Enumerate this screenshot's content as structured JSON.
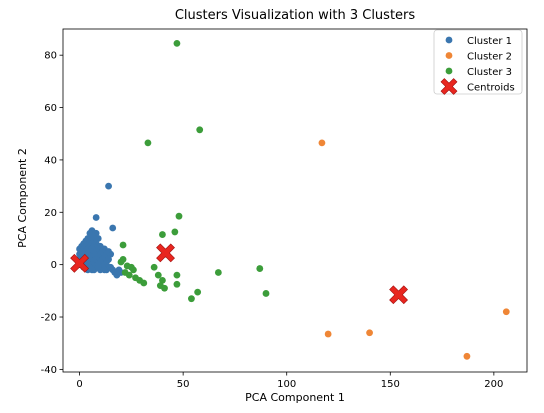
{
  "chart_data": {
    "type": "scatter",
    "title": "Clusters Visualization with 3 Clusters",
    "xlabel": "PCA Component 1",
    "ylabel": "PCA Component 2",
    "xlim": [
      -8,
      216
    ],
    "ylim": [
      -41,
      90
    ],
    "xticks": [
      0,
      50,
      100,
      150,
      200
    ],
    "yticks": [
      -40,
      -20,
      0,
      20,
      40,
      60,
      80
    ],
    "grid": false,
    "legend_position": "top-right",
    "series": [
      {
        "name": "Cluster 1",
        "color": "#3a76af",
        "marker": "circle",
        "points": [
          [
            14,
            30
          ],
          [
            8,
            18
          ],
          [
            16,
            14
          ],
          [
            6,
            13
          ],
          [
            5,
            12
          ],
          [
            8,
            12
          ],
          [
            6,
            11
          ],
          [
            4,
            10
          ],
          [
            7,
            10
          ],
          [
            9,
            10
          ],
          [
            3,
            9
          ],
          [
            5,
            9
          ],
          [
            2,
            8
          ],
          [
            6,
            8
          ],
          [
            8,
            8
          ],
          [
            1,
            7
          ],
          [
            3,
            7
          ],
          [
            5,
            7
          ],
          [
            7,
            7
          ],
          [
            10,
            7
          ],
          [
            0,
            6
          ],
          [
            2,
            6
          ],
          [
            4,
            6
          ],
          [
            6,
            6
          ],
          [
            9,
            6
          ],
          [
            12,
            6
          ],
          [
            1,
            5
          ],
          [
            3,
            5
          ],
          [
            5,
            5
          ],
          [
            8,
            5
          ],
          [
            11,
            5
          ],
          [
            14,
            5
          ],
          [
            15,
            4
          ],
          [
            0,
            4
          ],
          [
            2,
            4
          ],
          [
            4,
            4
          ],
          [
            7,
            4
          ],
          [
            10,
            4
          ],
          [
            13,
            4
          ],
          [
            1,
            3
          ],
          [
            3,
            3
          ],
          [
            6,
            3
          ],
          [
            9,
            3
          ],
          [
            12,
            3
          ],
          [
            0,
            2
          ],
          [
            2,
            2
          ],
          [
            5,
            2
          ],
          [
            8,
            2
          ],
          [
            11,
            2
          ],
          [
            14,
            2
          ],
          [
            1,
            1
          ],
          [
            4,
            1
          ],
          [
            7,
            1
          ],
          [
            10,
            1
          ],
          [
            13,
            1
          ],
          [
            0,
            0
          ],
          [
            3,
            0
          ],
          [
            6,
            0
          ],
          [
            9,
            0
          ],
          [
            12,
            0
          ],
          [
            2,
            -1
          ],
          [
            5,
            -1
          ],
          [
            8,
            -1
          ],
          [
            11,
            -1
          ],
          [
            14,
            -1
          ],
          [
            4,
            -2
          ],
          [
            7,
            -2
          ],
          [
            10,
            -2
          ],
          [
            13,
            -2
          ],
          [
            16,
            -2
          ],
          [
            17,
            -3
          ],
          [
            18,
            -3
          ],
          [
            19,
            -2
          ],
          [
            20,
            -3
          ],
          [
            18,
            -4
          ],
          [
            3,
            -1
          ],
          [
            6,
            -2
          ],
          [
            9,
            -1
          ],
          [
            12,
            -2
          ],
          [
            15,
            -1
          ]
        ]
      },
      {
        "name": "Cluster 2",
        "color": "#ef8636",
        "marker": "circle",
        "points": [
          [
            117,
            46.5
          ],
          [
            120,
            -26.5
          ],
          [
            140,
            -26
          ],
          [
            187,
            -35
          ],
          [
            206,
            -18
          ]
        ]
      },
      {
        "name": "Cluster 3",
        "color": "#3c9d3a",
        "marker": "circle",
        "points": [
          [
            47,
            84.5
          ],
          [
            58,
            51.5
          ],
          [
            33,
            46.5
          ],
          [
            48,
            18.5
          ],
          [
            46,
            12.5
          ],
          [
            40,
            11.5
          ],
          [
            21,
            7.5
          ],
          [
            21,
            2
          ],
          [
            20,
            1
          ],
          [
            23,
            -0.5
          ],
          [
            25,
            -1
          ],
          [
            26,
            -2
          ],
          [
            22,
            -3
          ],
          [
            24,
            -4
          ],
          [
            27,
            -5
          ],
          [
            29,
            -6
          ],
          [
            31,
            -7
          ],
          [
            36,
            -1
          ],
          [
            38,
            -4
          ],
          [
            40,
            -6
          ],
          [
            39,
            -8
          ],
          [
            41,
            -9
          ],
          [
            47,
            -4
          ],
          [
            47,
            -7.5
          ],
          [
            54,
            -13
          ],
          [
            57,
            -10.5
          ],
          [
            67,
            -3
          ],
          [
            87,
            -1.5
          ],
          [
            90,
            -11
          ]
        ]
      },
      {
        "name": "Centroids",
        "color": "#e8261f",
        "marker": "x",
        "points": [
          [
            0,
            0.5
          ],
          [
            41.5,
            4.5
          ],
          [
            154,
            -11.5
          ]
        ]
      }
    ]
  }
}
